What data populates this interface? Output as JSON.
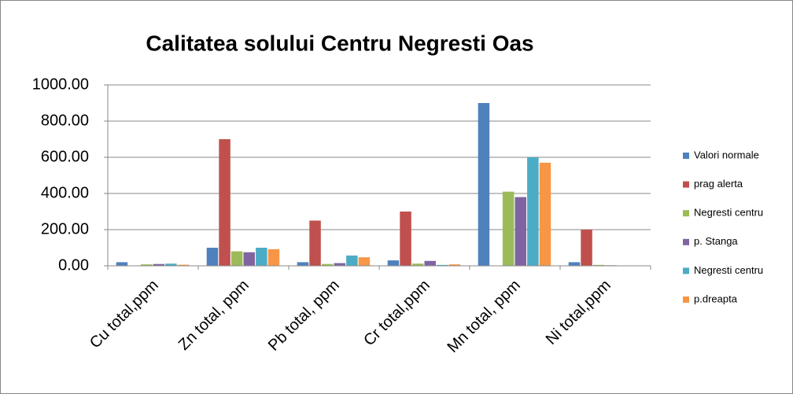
{
  "chart_data": {
    "type": "bar",
    "title": "Calitatea solului Centru Negresti Oas",
    "categories": [
      "Cu total,ppm",
      "Zn total, ppm",
      "Pb total, ppm",
      "Cr total,ppm",
      "Mn total, ppm",
      "Ni total,ppm"
    ],
    "series": [
      {
        "name": "Valori normale",
        "color": "#4f81bd",
        "values": [
          20,
          100,
          20,
          30,
          900,
          20
        ]
      },
      {
        "name": "prag alerta",
        "color": "#c0504d",
        "values": [
          null,
          700,
          250,
          300,
          null,
          200
        ]
      },
      {
        "name": "Negresti centru",
        "color": "#9bbb59",
        "values": [
          8,
          80,
          10,
          12,
          410,
          5
        ]
      },
      {
        "name": "p. Stanga",
        "color": "#8064a2",
        "values": [
          10,
          75,
          15,
          27,
          380,
          3
        ]
      },
      {
        "name": "Negresti centru",
        "color": "#4bacc6",
        "values": [
          12,
          100,
          57,
          5,
          600,
          2
        ]
      },
      {
        "name": "p.dreapta",
        "color": "#f79646",
        "values": [
          6,
          92,
          47,
          8,
          570,
          2
        ]
      }
    ],
    "ylim": [
      0,
      1000
    ],
    "yticks": [
      {
        "value": 0,
        "label": "0.00"
      },
      {
        "value": 200,
        "label": "200.00"
      },
      {
        "value": 400,
        "label": "400.00"
      },
      {
        "value": 600,
        "label": "600.00"
      },
      {
        "value": 800,
        "label": "800.00"
      },
      {
        "value": 1000,
        "label": "1000.00"
      }
    ],
    "grid": true,
    "legend": "right"
  }
}
